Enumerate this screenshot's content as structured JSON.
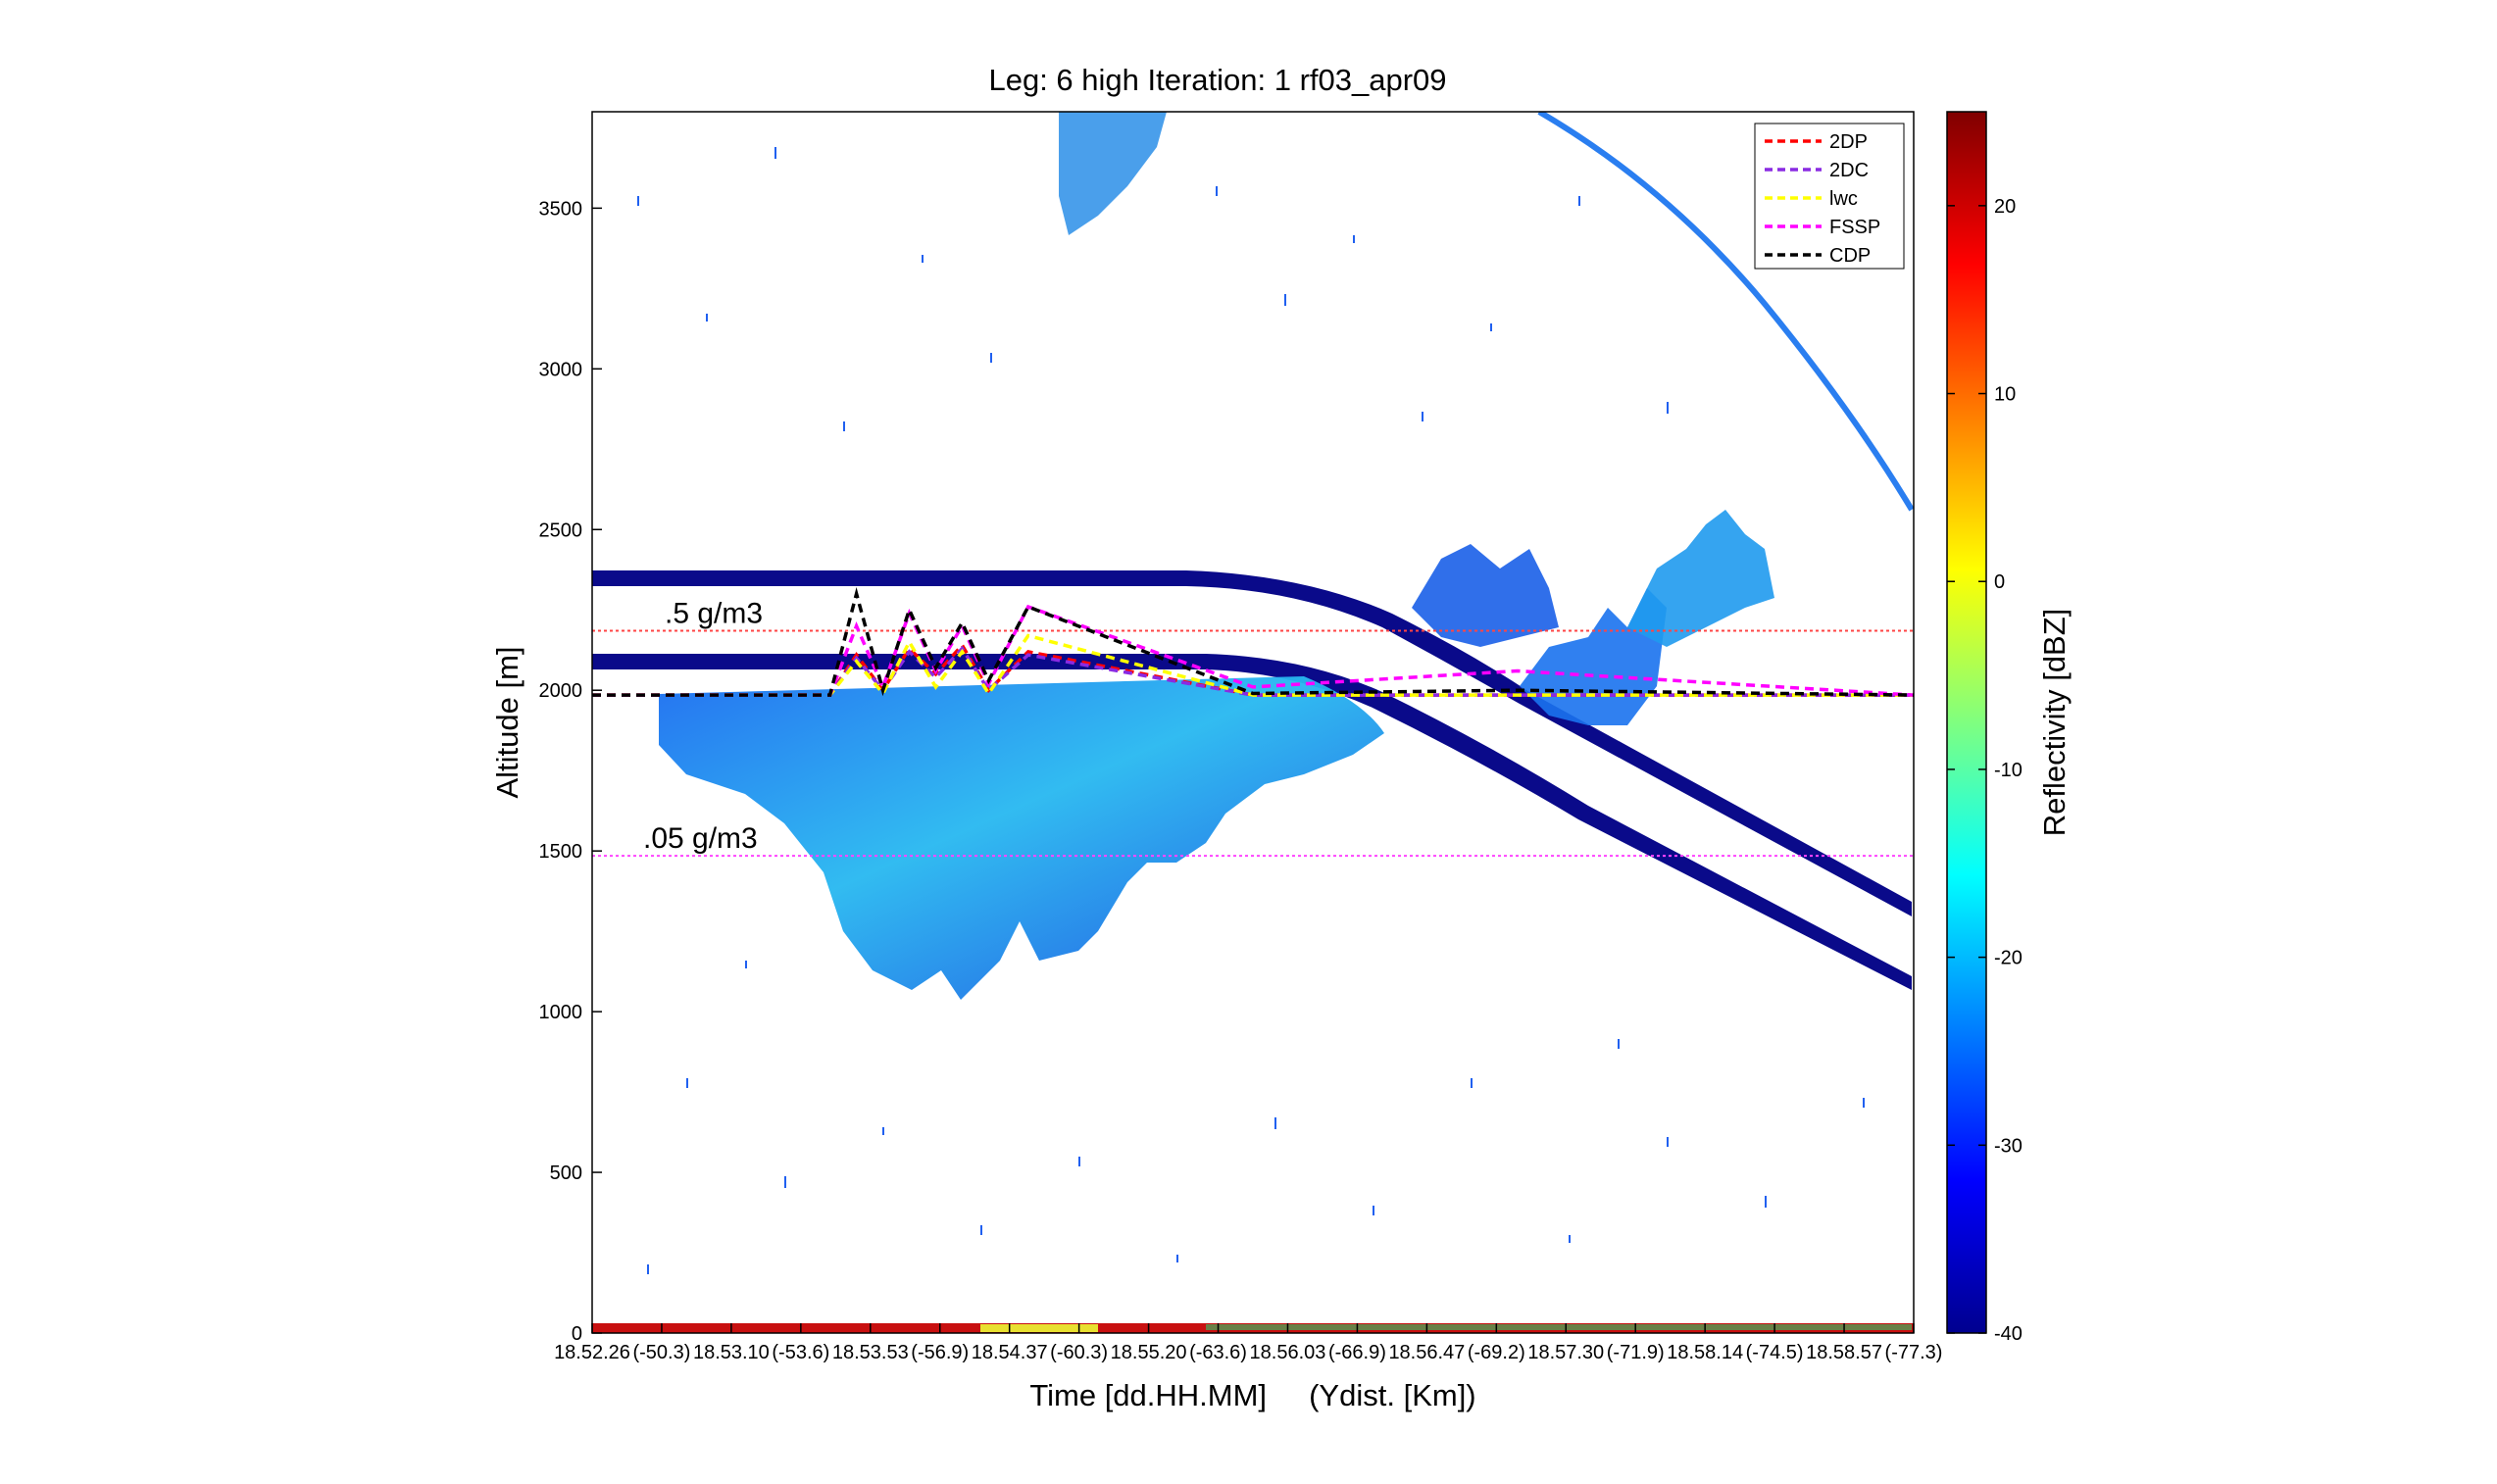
{
  "chart_data": {
    "type": "heatmap",
    "title": "Leg: 6 high Iteration: 1  rf03_apr09",
    "xlabel": "Time [dd.HH.MM]     (Ydist. [Km])",
    "ylabel": "Altitude [m]",
    "ylim": [
      0,
      3800
    ],
    "yticks": [
      0,
      500,
      1000,
      1500,
      2000,
      2500,
      3000,
      3500
    ],
    "x_tick_labels": [
      "18.52.26",
      "(-50.3)",
      "18.53.10",
      "(-53.6)",
      "18.53.53",
      "(-56.9)",
      "18.54.37",
      "(-60.3)",
      "18.55.20",
      "(-63.6)",
      "18.56.03",
      "(-66.9)",
      "18.56.47",
      "(-69.2)",
      "18.57.30",
      "(-71.9)",
      "18.58.14",
      "(-74.5)",
      "18.58.57",
      "(-77.3)"
    ],
    "colorbar": {
      "label": "Reflectivity [dBZ]",
      "range": [
        -40,
        25
      ],
      "ticks": [
        -40,
        -30,
        -20,
        -10,
        0,
        10,
        20
      ],
      "colormap": "jet"
    },
    "annotations": [
      {
        "text": ".5 g/m3",
        "altitude": 2185,
        "line_color": "#ff4444"
      },
      {
        "text": ".05 g/m3",
        "altitude": 1485,
        "line_color": "#ff44ff"
      }
    ],
    "legend": {
      "placement": "top-right",
      "entries": [
        {
          "name": "2DP",
          "color": "#ff0000"
        },
        {
          "name": "2DC",
          "color": "#8a2be2"
        },
        {
          "name": "lwc",
          "color": "#ffff00"
        },
        {
          "name": "FSSP",
          "color": "#ff00ff"
        },
        {
          "name": "CDP",
          "color": "#000000"
        }
      ]
    },
    "series": [
      {
        "name": "2DP",
        "x": [
          0,
          0.18,
          0.2,
          0.22,
          0.24,
          0.26,
          0.28,
          0.3,
          0.33,
          0.5,
          0.7,
          1
        ],
        "y": [
          1985,
          1985,
          2110,
          2000,
          2130,
          2050,
          2140,
          2000,
          2120,
          1985,
          1985,
          1985
        ]
      },
      {
        "name": "2DC",
        "x": [
          0,
          0.18,
          0.2,
          0.22,
          0.24,
          0.26,
          0.28,
          0.3,
          0.33,
          0.5,
          0.7,
          1
        ],
        "y": [
          1985,
          1985,
          2100,
          2000,
          2120,
          2040,
          2130,
          2000,
          2110,
          1985,
          1985,
          1985
        ]
      },
      {
        "name": "lwc",
        "x": [
          0,
          0.18,
          0.2,
          0.22,
          0.24,
          0.26,
          0.28,
          0.3,
          0.33,
          0.5,
          0.7,
          1
        ],
        "y": [
          1985,
          1985,
          2090,
          1990,
          2150,
          2010,
          2120,
          1990,
          2170,
          1985,
          1985,
          1985
        ]
      },
      {
        "name": "FSSP",
        "x": [
          0,
          0.18,
          0.2,
          0.22,
          0.24,
          0.26,
          0.28,
          0.3,
          0.33,
          0.5,
          0.7,
          1
        ],
        "y": [
          1985,
          1985,
          2200,
          2010,
          2240,
          2060,
          2200,
          2020,
          2260,
          2010,
          2060,
          1985
        ]
      },
      {
        "name": "CDP",
        "x": [
          0,
          0.18,
          0.2,
          0.22,
          0.24,
          0.26,
          0.28,
          0.3,
          0.33,
          0.5,
          0.7,
          1
        ],
        "y": [
          1985,
          1985,
          2300,
          2000,
          2250,
          2070,
          2210,
          2030,
          2260,
          1990,
          2000,
          1985
        ]
      }
    ]
  }
}
